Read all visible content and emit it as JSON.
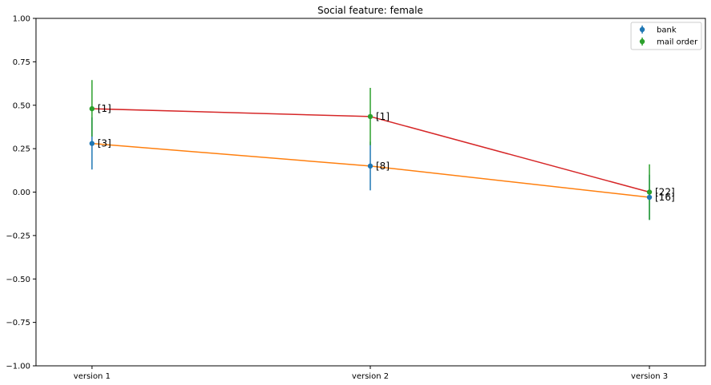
{
  "chart_data": {
    "type": "scatter",
    "title": "Social feature: female",
    "xlabel": "",
    "ylabel": "",
    "categories": [
      "version 1",
      "version 2",
      "version 3"
    ],
    "ylim": [
      -1.0,
      1.0
    ],
    "yticks": [
      "−1.00",
      "−0.75",
      "−0.50",
      "−0.25",
      "0.00",
      "0.25",
      "0.50",
      "0.75",
      "1.00"
    ],
    "ytick_values": [
      -1.0,
      -0.75,
      -0.5,
      -0.25,
      0.0,
      0.25,
      0.5,
      0.75,
      1.0
    ],
    "grid": false,
    "legend_position": "top-right",
    "series": [
      {
        "name": "bank",
        "color": "#1f77b4",
        "line_color": "#ff7f0e",
        "values": [
          0.28,
          0.15,
          -0.03
        ],
        "err_low": [
          0.13,
          0.01,
          -0.16
        ],
        "err_high": [
          0.43,
          0.29,
          0.1
        ],
        "annotations": [
          "[3]",
          "[8]",
          "[16]"
        ]
      },
      {
        "name": "mail order",
        "color": "#2ca02c",
        "line_color": "#d62728",
        "values": [
          0.48,
          0.435,
          0.0
        ],
        "err_low": [
          0.32,
          0.27,
          -0.16
        ],
        "err_high": [
          0.645,
          0.6,
          0.16
        ],
        "annotations": [
          "[1]",
          "[1]",
          "[22]"
        ]
      }
    ]
  }
}
